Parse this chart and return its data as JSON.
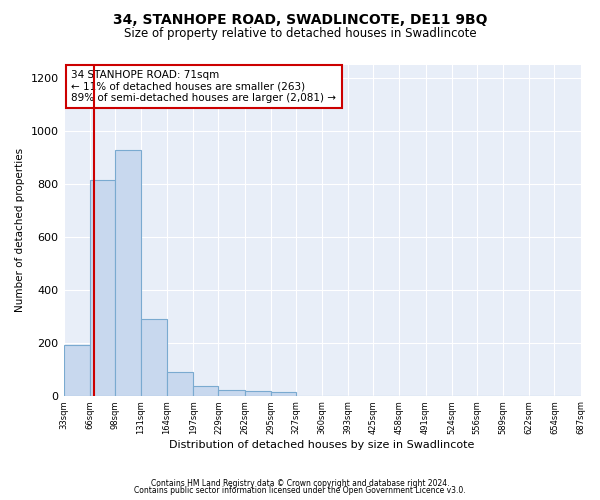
{
  "title": "34, STANHOPE ROAD, SWADLINCOTE, DE11 9BQ",
  "subtitle": "Size of property relative to detached houses in Swadlincote",
  "xlabel": "Distribution of detached houses by size in Swadlincote",
  "ylabel": "Number of detached properties",
  "bar_color": "#c8d8ee",
  "bar_edge_color": "#7aaad0",
  "annotation_box_text": "34 STANHOPE ROAD: 71sqm\n← 11% of detached houses are smaller (263)\n89% of semi-detached houses are larger (2,081) →",
  "annotation_box_facecolor": "#ffffff",
  "annotation_box_edgecolor": "#cc0000",
  "vline_x": 71,
  "vline_color": "#cc0000",
  "bin_edges": [
    33,
    66,
    98,
    131,
    164,
    197,
    229,
    262,
    295,
    327,
    360,
    393,
    425,
    458,
    491,
    524,
    556,
    589,
    622,
    654,
    687
  ],
  "bin_labels": [
    "33sqm",
    "66sqm",
    "98sqm",
    "131sqm",
    "164sqm",
    "197sqm",
    "229sqm",
    "262sqm",
    "295sqm",
    "327sqm",
    "360sqm",
    "393sqm",
    "425sqm",
    "458sqm",
    "491sqm",
    "524sqm",
    "556sqm",
    "589sqm",
    "622sqm",
    "654sqm",
    "687sqm"
  ],
  "bar_heights": [
    190,
    815,
    930,
    290,
    88,
    35,
    20,
    18,
    12,
    0,
    0,
    0,
    0,
    0,
    0,
    0,
    0,
    0,
    0,
    0
  ],
  "ylim": [
    0,
    1250
  ],
  "yticks": [
    0,
    200,
    400,
    600,
    800,
    1000,
    1200
  ],
  "footer_line1": "Contains HM Land Registry data © Crown copyright and database right 2024.",
  "footer_line2": "Contains public sector information licensed under the Open Government Licence v3.0.",
  "fig_bg_color": "#ffffff",
  "plot_bg_color": "#e8eef8"
}
